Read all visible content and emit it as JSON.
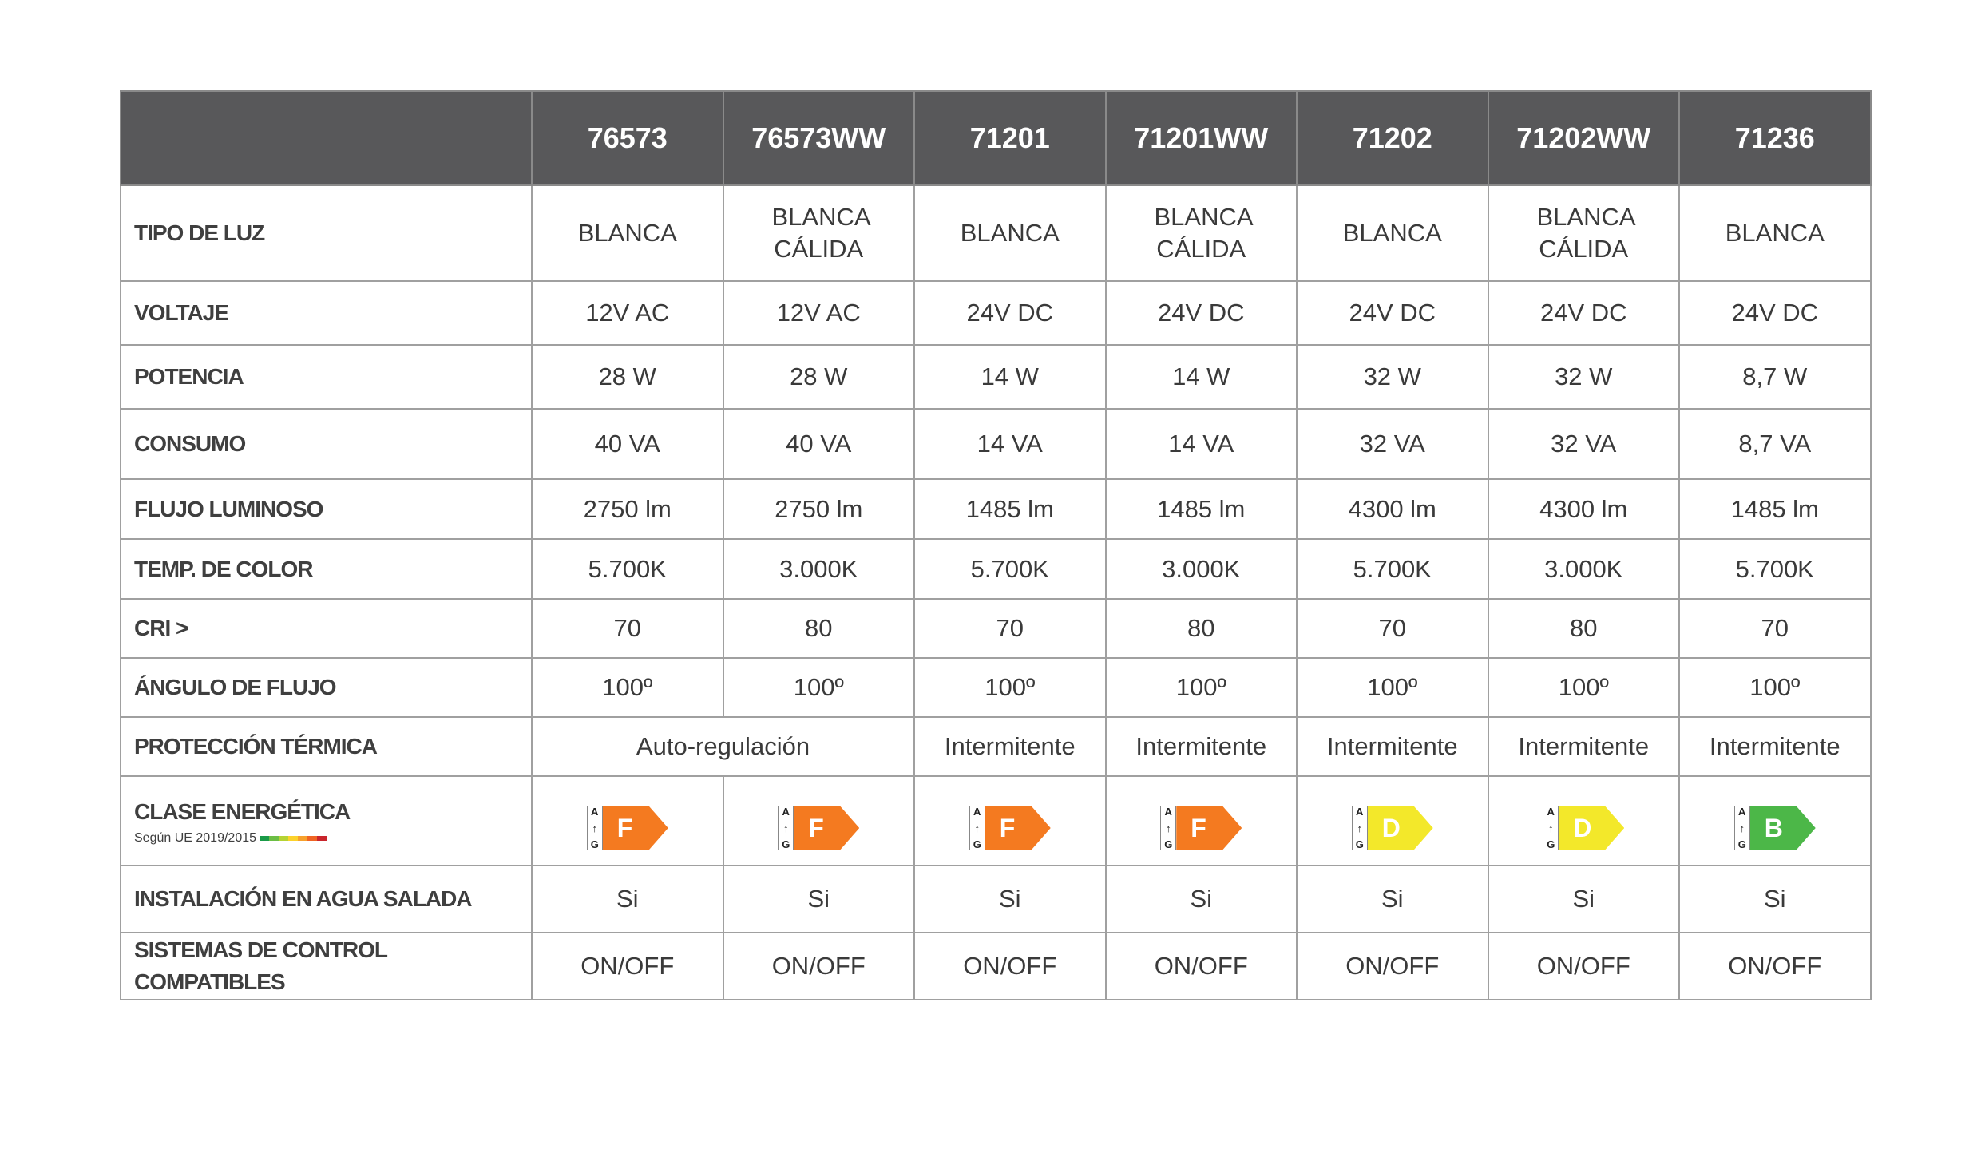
{
  "header": {
    "corner": "",
    "models": [
      "76573",
      "76573WW",
      "71201",
      "71201WW",
      "71202",
      "71202WW",
      "71236"
    ]
  },
  "rows": [
    {
      "label": "TIPO DE LUZ",
      "values": [
        "BLANCA",
        "BLANCA CÁLIDA",
        "BLANCA",
        "BLANCA CÁLIDA",
        "BLANCA",
        "BLANCA CÁLIDA",
        "BLANCA"
      ]
    },
    {
      "label": "VOLTAJE",
      "values": [
        "12V AC",
        "12V AC",
        "24V DC",
        "24V DC",
        "24V DC",
        "24V DC",
        "24V DC"
      ]
    },
    {
      "label": "POTENCIA",
      "values": [
        "28 W",
        "28 W",
        "14 W",
        "14 W",
        "32 W",
        "32 W",
        "8,7 W"
      ]
    },
    {
      "label": "CONSUMO",
      "values": [
        "40 VA",
        "40 VA",
        "14 VA",
        "14 VA",
        "32 VA",
        "32 VA",
        "8,7 VA"
      ]
    },
    {
      "label": "FLUJO LUMINOSO",
      "values": [
        "2750 lm",
        "2750 lm",
        "1485 lm",
        "1485 lm",
        "4300 lm",
        "4300 lm",
        "1485 lm"
      ]
    },
    {
      "label": "TEMP. DE COLOR",
      "values": [
        "5.700K",
        "3.000K",
        "5.700K",
        "3.000K",
        "5.700K",
        "3.000K",
        "5.700K"
      ]
    },
    {
      "label": "CRI >",
      "values": [
        "70",
        "80",
        "70",
        "80",
        "70",
        "80",
        "70"
      ]
    },
    {
      "label": "ÁNGULO DE FLUJO",
      "values": [
        "100º",
        "100º",
        "100º",
        "100º",
        "100º",
        "100º",
        "100º"
      ]
    }
  ],
  "thermal": {
    "label": "PROTECCIÓN TÉRMICA",
    "values": [
      "Auto-regulación",
      "Intermitente",
      "Intermitente",
      "Intermitente",
      "Intermitente",
      "Intermitente"
    ]
  },
  "energy": {
    "label": "CLASE ENERGÉTICA",
    "sublabel": "Según UE 2019/2015",
    "scale_colors": [
      "#1a9a48",
      "#6cbe45",
      "#b5d334",
      "#fcd22b",
      "#f7a12c",
      "#ef6424",
      "#c9252c"
    ],
    "scale_top": "A",
    "scale_bottom": "G",
    "classes": [
      {
        "cls": "F",
        "color": "#f47a20"
      },
      {
        "cls": "F",
        "color": "#f47a20"
      },
      {
        "cls": "F",
        "color": "#f47a20"
      },
      {
        "cls": "F",
        "color": "#f47a20"
      },
      {
        "cls": "D",
        "color": "#f3e82a"
      },
      {
        "cls": "D",
        "color": "#f3e82a"
      },
      {
        "cls": "B",
        "color": "#4cb748"
      }
    ]
  },
  "tail_rows": [
    {
      "label": "INSTALACIÓN  EN AGUA SALADA",
      "values": [
        "Si",
        "Si",
        "Si",
        "Si",
        "Si",
        "Si",
        "Si"
      ]
    },
    {
      "label": "SISTEMAS DE CONTROL COMPATIBLES",
      "values": [
        "ON/OFF",
        "ON/OFF",
        "ON/OFF",
        "ON/OFF",
        "ON/OFF",
        "ON/OFF",
        "ON/OFF"
      ]
    }
  ],
  "colors": {
    "header_bg": "#58585a",
    "border": "#a0a0a0"
  }
}
